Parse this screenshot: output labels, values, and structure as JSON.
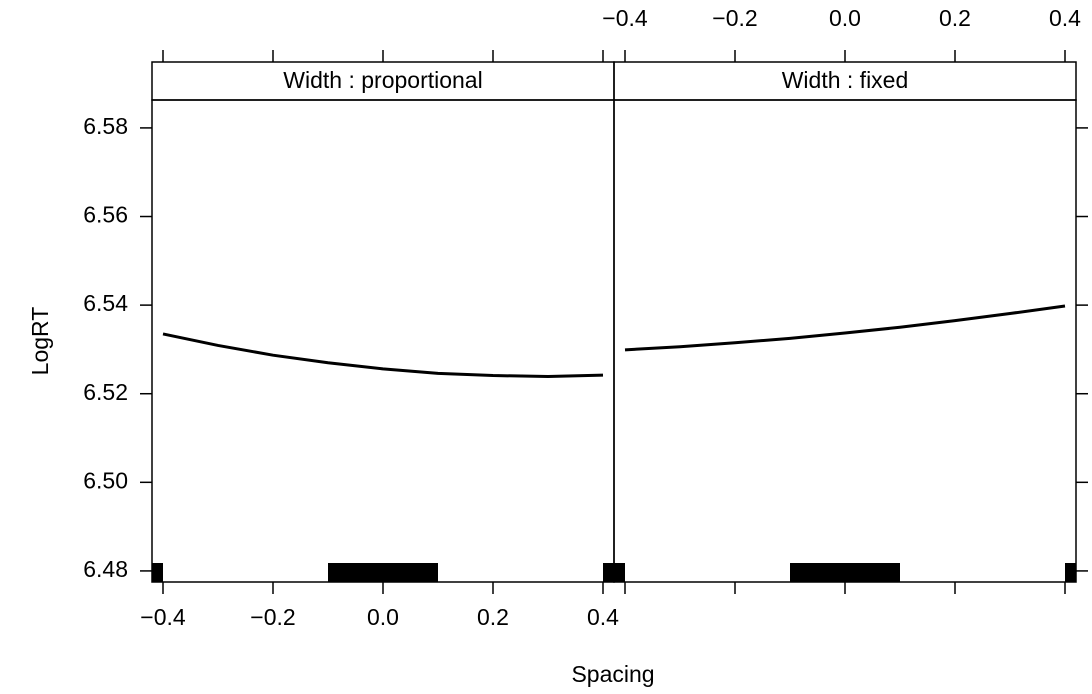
{
  "chart_data": {
    "type": "line",
    "xlabel": "Spacing",
    "ylabel": "LogRT",
    "x": [
      -0.4,
      -0.3,
      -0.2,
      -0.1,
      0,
      0.1,
      0.2,
      0.3,
      0.4
    ],
    "xlim": [
      -0.42,
      0.42
    ],
    "ylim": [
      6.4775,
      6.5863
    ],
    "xticks": [
      {
        "value": -0.4,
        "label": "−0.4"
      },
      {
        "value": -0.2,
        "label": "−0.2"
      },
      {
        "value": 0,
        "label": "0.0"
      },
      0.2,
      0.4
    ],
    "yticks": [
      6.48,
      {
        "value": 6.5,
        "label": "6.50"
      },
      6.52,
      6.54,
      6.56,
      6.58
    ],
    "color": "#000000",
    "strip_color": "#ffe5cc",
    "panels": [
      {
        "strip": "Width : proportional",
        "values": [
          6.5335,
          6.5309,
          6.5287,
          6.527,
          6.5256,
          6.5246,
          6.5241,
          6.5239,
          6.5242
        ],
        "rug": [
          [
            -0.42,
            -0.4
          ],
          [
            -0.1,
            0.1
          ],
          [
            0.4,
            0.42
          ]
        ]
      },
      {
        "strip": "Width : fixed",
        "values": [
          6.5299,
          6.5306,
          6.5315,
          6.5325,
          6.5337,
          6.535,
          6.5365,
          6.5381,
          6.5398
        ],
        "rug": [
          [
            -0.42,
            -0.4
          ],
          [
            -0.1,
            0.1
          ],
          [
            0.4,
            0.42
          ]
        ]
      }
    ]
  }
}
